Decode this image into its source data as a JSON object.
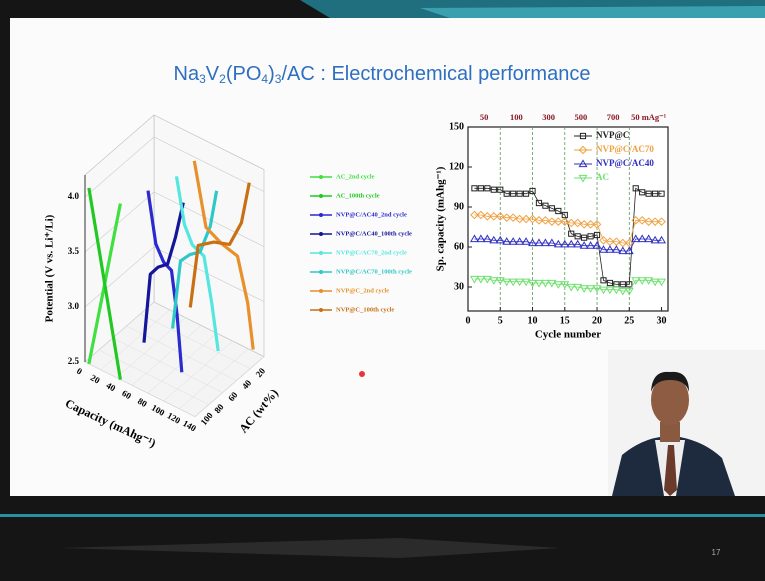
{
  "title": [
    "Na",
    "3",
    "V",
    "2",
    "(PO",
    "4",
    ")",
    "3",
    "/AC : Electrochemical performance"
  ],
  "page_number": "17",
  "chart_data": [
    {
      "type": "line3d",
      "xlabel": "Capacity (mAhg⁻¹)",
      "ylabel": "Potential (V vs. Li⁺/Li)",
      "zlabel": "AC (wt%)",
      "xticks": [
        0,
        20,
        40,
        60,
        80,
        100,
        120,
        140
      ],
      "yticks": [
        2.5,
        {
          "value": 3,
          "label": "3.0"
        },
        3.5,
        {
          "value": 4,
          "label": "4.0"
        }
      ],
      "zticks": [
        100,
        80,
        60,
        40,
        20
      ],
      "xlim": [
        0,
        140
      ],
      "ylim": [
        2.5,
        4.2
      ],
      "zlim": [
        100,
        0
      ],
      "series": [
        {
          "name": "AC_2nd cycle",
          "color": "#3fe03f",
          "z": 100,
          "x": [
            5,
            15,
            25,
            35,
            45
          ],
          "values": [
            2.5,
            2.9,
            3.3,
            3.7,
            4.1
          ]
        },
        {
          "name": "AC_100th cycle",
          "color": "#22c822",
          "z": 100,
          "x": [
            5,
            15,
            25,
            35,
            45
          ],
          "values": [
            4.1,
            3.7,
            3.3,
            2.9,
            2.5
          ]
        },
        {
          "name": "NVP@C/AC40_2nd cycle",
          "color": "#2a2ad0",
          "z": 60,
          "x": [
            45,
            55,
            65,
            75,
            82,
            88
          ],
          "values": [
            4.0,
            3.55,
            3.42,
            3.38,
            3.0,
            2.5
          ]
        },
        {
          "name": "NVP@C/AC40_100th cycle",
          "color": "#15159a",
          "z": 60,
          "x": [
            40,
            48,
            58,
            70,
            80,
            90
          ],
          "values": [
            2.6,
            3.25,
            3.35,
            3.42,
            3.7,
            4.05
          ]
        },
        {
          "name": "NVP@C/AC70_2nd cycle",
          "color": "#55e6e0",
          "z": 30,
          "x": [
            55,
            65,
            75,
            90,
            100,
            108
          ],
          "values": [
            4.0,
            3.6,
            3.45,
            3.4,
            3.0,
            2.6
          ]
        },
        {
          "name": "NVP@C/AC70_100th cycle",
          "color": "#2ec8c8",
          "z": 30,
          "x": [
            50,
            60,
            72,
            85,
            98,
            106
          ],
          "values": [
            2.6,
            3.25,
            3.35,
            3.42,
            3.7,
            4.05
          ]
        },
        {
          "name": "NVP@C_2nd cycle",
          "color": "#e8902c",
          "z": 10,
          "x": [
            60,
            75,
            95,
            115,
            128,
            135
          ],
          "values": [
            4.05,
            3.5,
            3.42,
            3.38,
            3.0,
            2.6
          ]
        },
        {
          "name": "NVP@C_100th cycle",
          "color": "#c87014",
          "z": 10,
          "x": [
            55,
            65,
            85,
            105,
            120,
            130
          ],
          "values": [
            2.7,
            3.3,
            3.4,
            3.45,
            3.7,
            4.1
          ]
        }
      ]
    },
    {
      "type": "line",
      "xlabel": "Cycle number",
      "ylabel": "Sp. capacity (mAhg⁻¹)",
      "top_labels": [
        "50",
        "100",
        "300",
        "500",
        "700",
        "50 mAg⁻¹"
      ],
      "vlines": [
        5,
        10,
        15,
        20,
        25
      ],
      "xlim": [
        0,
        31
      ],
      "ylim": [
        12,
        150
      ],
      "xticks": [
        0,
        5,
        10,
        15,
        20,
        25,
        30
      ],
      "yticks": [
        30,
        60,
        90,
        120,
        150
      ],
      "x": [
        1,
        2,
        3,
        4,
        5,
        6,
        7,
        8,
        9,
        10,
        11,
        12,
        13,
        14,
        15,
        16,
        17,
        18,
        19,
        20,
        21,
        22,
        23,
        24,
        25,
        26,
        27,
        28,
        29,
        30
      ],
      "series": [
        {
          "name": "NVP@C",
          "color": "#222222",
          "marker": "square",
          "values": [
            104,
            104,
            104,
            103,
            103,
            100,
            100,
            100,
            100,
            102,
            93,
            91,
            89,
            87,
            84,
            70,
            68,
            67,
            68,
            69,
            35,
            33,
            32,
            32,
            32,
            104,
            101,
            100,
            100,
            100
          ]
        },
        {
          "name": "NVP@C/AC70",
          "color": "#f0a040",
          "marker": "diamond",
          "values": [
            84,
            84,
            83,
            83,
            83,
            82,
            82,
            81,
            81,
            81,
            80,
            80,
            79,
            79,
            79,
            78,
            78,
            77,
            77,
            77,
            65,
            64,
            64,
            63,
            63,
            80,
            80,
            79,
            79,
            79
          ]
        },
        {
          "name": "NVP@C/AC40",
          "color": "#3030c0",
          "marker": "triangle",
          "values": [
            66,
            66,
            66,
            65,
            65,
            64,
            64,
            64,
            64,
            63,
            63,
            63,
            63,
            62,
            62,
            62,
            62,
            61,
            61,
            61,
            58,
            58,
            58,
            57,
            57,
            66,
            66,
            66,
            65,
            65
          ]
        },
        {
          "name": "AC",
          "color": "#6ee06e",
          "marker": "triangle-down",
          "values": [
            36,
            36,
            36,
            35,
            35,
            34,
            34,
            34,
            34,
            33,
            33,
            33,
            33,
            32,
            32,
            30,
            30,
            29,
            29,
            29,
            28,
            28,
            28,
            27,
            27,
            35,
            35,
            35,
            34,
            34
          ]
        }
      ]
    }
  ]
}
